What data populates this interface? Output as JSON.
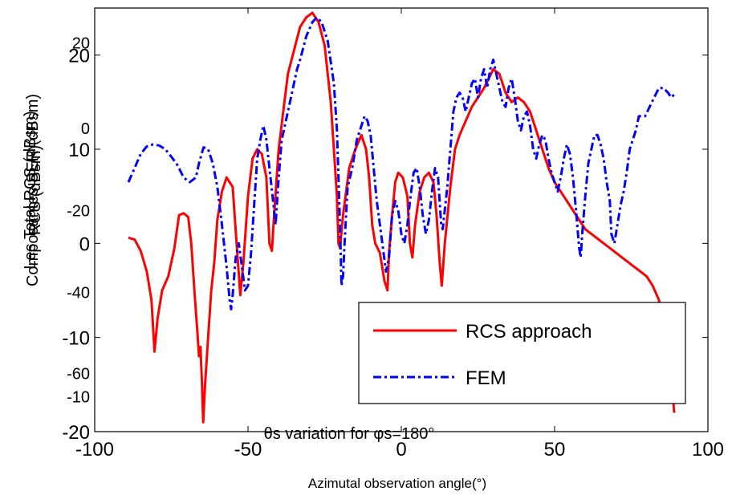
{
  "chart_data": {
    "type": "line",
    "xlabel": "Azimutal observation angle(°)",
    "ylabel_layers": [
      "Les Total RCS (dBsm)",
      "Composantes SER (dBsm)",
      "RCS (dBsm)"
    ],
    "xlim": [
      -100,
      100
    ],
    "ylim": [
      -20,
      25
    ],
    "x_ticks": [
      "-100",
      "-50",
      "0",
      "50",
      "100"
    ],
    "y_ticks": [
      "-20",
      "-10",
      "0",
      "10",
      "20"
    ],
    "ghost_tick_labels": [
      {
        "text": "20",
        "y": 21.3
      },
      {
        "text": "0",
        "y": 12.2
      },
      {
        "text": "-20",
        "y": 3.5
      },
      {
        "text": "-40",
        "y": -5.2
      },
      {
        "text": "-60",
        "y": -13.8
      },
      {
        "text": "-10",
        "y": -16.3
      }
    ],
    "ghost_title": "θs variation  for  φs=180°",
    "grid": false,
    "legend": {
      "position": "bottom-right"
    },
    "series": [
      {
        "name": "RCS approach",
        "color": "#ff0000",
        "style": "solid",
        "points": [
          [
            -89,
            0.6
          ],
          [
            -87,
            0.4
          ],
          [
            -85,
            -0.8
          ],
          [
            -83,
            -3
          ],
          [
            -81.5,
            -6
          ],
          [
            -80.5,
            -11.5
          ],
          [
            -79.5,
            -8
          ],
          [
            -78,
            -5
          ],
          [
            -76,
            -3.5
          ],
          [
            -74,
            -0.5
          ],
          [
            -72.5,
            3
          ],
          [
            -71,
            3.2
          ],
          [
            -69.5,
            2.8
          ],
          [
            -68.5,
            0
          ],
          [
            -67.5,
            -5
          ],
          [
            -66.5,
            -9.5
          ],
          [
            -66,
            -12
          ],
          [
            -65.5,
            -11
          ],
          [
            -65,
            -15
          ],
          [
            -64.6,
            -19
          ],
          [
            -64,
            -15
          ],
          [
            -63,
            -10
          ],
          [
            -62,
            -5
          ],
          [
            -61,
            -2
          ],
          [
            -60,
            2.5
          ],
          [
            -58.5,
            5.5
          ],
          [
            -57,
            7
          ],
          [
            -55,
            6
          ],
          [
            -53.5,
            -1
          ],
          [
            -52.5,
            -5.5
          ],
          [
            -51.5,
            -2
          ],
          [
            -50,
            5
          ],
          [
            -48.5,
            9
          ],
          [
            -47,
            10
          ],
          [
            -45.5,
            9.5
          ],
          [
            -44,
            7
          ],
          [
            -43,
            0
          ],
          [
            -42.2,
            -0.8
          ],
          [
            -41.5,
            3
          ],
          [
            -40,
            10
          ],
          [
            -38.5,
            14
          ],
          [
            -37,
            18
          ],
          [
            -35,
            20.5
          ],
          [
            -33,
            23
          ],
          [
            -31,
            24
          ],
          [
            -29,
            24.5
          ],
          [
            -27,
            23.5
          ],
          [
            -25,
            21
          ],
          [
            -23,
            15
          ],
          [
            -22,
            10
          ],
          [
            -21,
            5
          ],
          [
            -20.5,
            0
          ],
          [
            -20,
            -0.5
          ],
          [
            -19,
            3
          ],
          [
            -17,
            8
          ],
          [
            -15,
            10
          ],
          [
            -13,
            11.5
          ],
          [
            -11.5,
            10
          ],
          [
            -10.5,
            7
          ],
          [
            -9.5,
            2
          ],
          [
            -8.5,
            0
          ],
          [
            -7,
            -1
          ],
          [
            -5.5,
            -4
          ],
          [
            -4.5,
            -5
          ],
          [
            -4,
            -1
          ],
          [
            -3,
            3
          ],
          [
            -2,
            6.5
          ],
          [
            -1,
            7.5
          ],
          [
            0.5,
            7
          ],
          [
            2,
            5
          ],
          [
            2.8,
            0
          ],
          [
            3.6,
            -1.5
          ],
          [
            4.5,
            2
          ],
          [
            6,
            5.5
          ],
          [
            7.5,
            7
          ],
          [
            9,
            7.5
          ],
          [
            10.5,
            6.5
          ],
          [
            11.5,
            3
          ],
          [
            12.5,
            -2
          ],
          [
            13.2,
            -4.5
          ],
          [
            14.2,
            0
          ],
          [
            16,
            6
          ],
          [
            17.5,
            10
          ],
          [
            19,
            11.5
          ],
          [
            21,
            13
          ],
          [
            23,
            14.5
          ],
          [
            25,
            15.5
          ],
          [
            27,
            16.5
          ],
          [
            28.5,
            17.5
          ],
          [
            30,
            18.5
          ],
          [
            32,
            18
          ],
          [
            34,
            16
          ],
          [
            36,
            15
          ],
          [
            38,
            15.5
          ],
          [
            40,
            15
          ],
          [
            42,
            14
          ],
          [
            44,
            12
          ],
          [
            46,
            10
          ],
          [
            48,
            8
          ],
          [
            50,
            6.5
          ],
          [
            52,
            5.5
          ],
          [
            54,
            4.5
          ],
          [
            56,
            3.5
          ],
          [
            58,
            2.5
          ],
          [
            60,
            1.5
          ],
          [
            62,
            1
          ],
          [
            64,
            0.5
          ],
          [
            66,
            0
          ],
          [
            68,
            -0.5
          ],
          [
            70,
            -1
          ],
          [
            72,
            -1.5
          ],
          [
            74,
            -2
          ],
          [
            76,
            -2.5
          ],
          [
            78,
            -3
          ],
          [
            80,
            -3.5
          ],
          [
            82,
            -4.5
          ],
          [
            84,
            -6
          ],
          [
            86,
            -9
          ],
          [
            88,
            -14
          ],
          [
            89,
            -18
          ]
        ]
      },
      {
        "name": "FEM",
        "color": "#0000ff",
        "style": "dashdot",
        "points": [
          [
            -89,
            6.5
          ],
          [
            -87,
            8
          ],
          [
            -85,
            9.5
          ],
          [
            -83,
            10.3
          ],
          [
            -81,
            10.5
          ],
          [
            -79,
            10.4
          ],
          [
            -77,
            10
          ],
          [
            -75,
            9.2
          ],
          [
            -73,
            8.3
          ],
          [
            -71,
            7
          ],
          [
            -69,
            6.5
          ],
          [
            -67,
            7
          ],
          [
            -66,
            8.5
          ],
          [
            -64.5,
            10.2
          ],
          [
            -63,
            10
          ],
          [
            -61.5,
            8.5
          ],
          [
            -60,
            6
          ],
          [
            -58.5,
            2
          ],
          [
            -57,
            -2.5
          ],
          [
            -56,
            -6
          ],
          [
            -55.5,
            -7
          ],
          [
            -55,
            -5.5
          ],
          [
            -54,
            -1.5
          ],
          [
            -53,
            0
          ],
          [
            -52,
            -2.5
          ],
          [
            -51,
            -5
          ],
          [
            -50,
            -4.5
          ],
          [
            -49,
            -1
          ],
          [
            -48,
            4
          ],
          [
            -47,
            9
          ],
          [
            -46,
            11
          ],
          [
            -45,
            12.5
          ],
          [
            -44,
            11
          ],
          [
            -43,
            8
          ],
          [
            -42,
            5
          ],
          [
            -41,
            2
          ],
          [
            -40,
            7
          ],
          [
            -39,
            11
          ],
          [
            -37,
            14
          ],
          [
            -35,
            17
          ],
          [
            -34,
            18.5
          ],
          [
            -33,
            19.5
          ],
          [
            -31,
            22
          ],
          [
            -29,
            23.5
          ],
          [
            -27.5,
            24
          ],
          [
            -26,
            23.5
          ],
          [
            -24,
            21.5
          ],
          [
            -22,
            17
          ],
          [
            -21,
            12
          ],
          [
            -20,
            2
          ],
          [
            -19.5,
            -4.5
          ],
          [
            -19,
            -3.5
          ],
          [
            -18.5,
            0
          ],
          [
            -17.5,
            6
          ],
          [
            -16,
            8
          ],
          [
            -14.5,
            11
          ],
          [
            -13,
            12.5
          ],
          [
            -12,
            13.5
          ],
          [
            -11,
            13
          ],
          [
            -10,
            11.5
          ],
          [
            -9,
            8
          ],
          [
            -8,
            4.5
          ],
          [
            -7,
            2
          ],
          [
            -6,
            -0.5
          ],
          [
            -5,
            -3
          ],
          [
            -4,
            -1.5
          ],
          [
            -3,
            3
          ],
          [
            -2,
            4.5
          ],
          [
            -1,
            3.5
          ],
          [
            0,
            1
          ],
          [
            1,
            0
          ],
          [
            2,
            2
          ],
          [
            3,
            5
          ],
          [
            4,
            7.5
          ],
          [
            5,
            8
          ],
          [
            6,
            6
          ],
          [
            7,
            3
          ],
          [
            8,
            1
          ],
          [
            9,
            2.5
          ],
          [
            10,
            5.5
          ],
          [
            11,
            8
          ],
          [
            12,
            7
          ],
          [
            13,
            2
          ],
          [
            13.5,
            1.5
          ],
          [
            14,
            3
          ],
          [
            15,
            6
          ],
          [
            16,
            10
          ],
          [
            17,
            14
          ],
          [
            18,
            15.5
          ],
          [
            19,
            16
          ],
          [
            20,
            15.5
          ],
          [
            21,
            14
          ],
          [
            22,
            15.5
          ],
          [
            23,
            17
          ],
          [
            24,
            17.5
          ],
          [
            25,
            15.5
          ],
          [
            26,
            17.5
          ],
          [
            27,
            18.5
          ],
          [
            28,
            16.5
          ],
          [
            29,
            18.5
          ],
          [
            30,
            19.5
          ],
          [
            31,
            18
          ],
          [
            32,
            16.5
          ],
          [
            33,
            15
          ],
          [
            34,
            14.5
          ],
          [
            35,
            16.5
          ],
          [
            36,
            17.5
          ],
          [
            37,
            15.5
          ],
          [
            38,
            13
          ],
          [
            39,
            12
          ],
          [
            40,
            13.5
          ],
          [
            41,
            14
          ],
          [
            42,
            12.5
          ],
          [
            43,
            10
          ],
          [
            44,
            9
          ],
          [
            45,
            10.5
          ],
          [
            46,
            11.5
          ],
          [
            47,
            11
          ],
          [
            48,
            9
          ],
          [
            49,
            7.5
          ],
          [
            50,
            6.5
          ],
          [
            51,
            5.5
          ],
          [
            52,
            7
          ],
          [
            53,
            9
          ],
          [
            54,
            10.5
          ],
          [
            55,
            9.5
          ],
          [
            56,
            7
          ],
          [
            57,
            3.5
          ],
          [
            58,
            -0.5
          ],
          [
            58.5,
            -1.5
          ],
          [
            59,
            1
          ],
          [
            60,
            5
          ],
          [
            61,
            8.5
          ],
          [
            62,
            10
          ],
          [
            63,
            11.5
          ],
          [
            64,
            11.5
          ],
          [
            65,
            10.5
          ],
          [
            66,
            9
          ],
          [
            67,
            6.5
          ],
          [
            68,
            4.5
          ],
          [
            68.5,
            1
          ],
          [
            69.5,
            0
          ],
          [
            70.5,
            2
          ],
          [
            71.5,
            4
          ],
          [
            72.5,
            5.5
          ],
          [
            73.5,
            7.5
          ],
          [
            74.5,
            10
          ],
          [
            75.5,
            11
          ],
          [
            76.5,
            12
          ],
          [
            77.5,
            13.5
          ],
          [
            78.5,
            13.5
          ],
          [
            79.5,
            13.5
          ],
          [
            81,
            14.5
          ],
          [
            82.5,
            15.5
          ],
          [
            84,
            16.5
          ],
          [
            85.5,
            16.5
          ],
          [
            87,
            16
          ],
          [
            88,
            15.5
          ],
          [
            89,
            15.8
          ]
        ]
      }
    ]
  }
}
